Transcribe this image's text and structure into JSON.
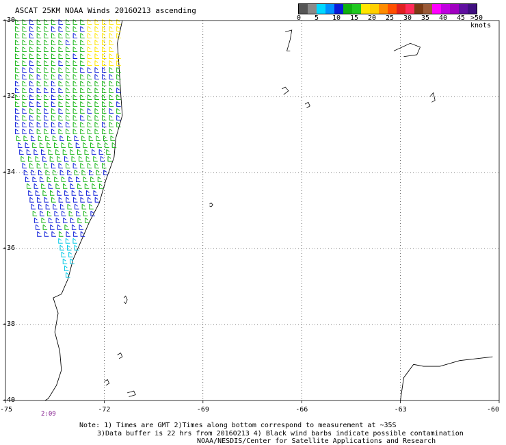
{
  "title": "ASCAT 25KM NOAA Winds 20160213 ascending",
  "colorbar": {
    "colors": [
      "#555555",
      "#8a8a8a",
      "#00d8ff",
      "#0090ff",
      "#0a1ad8",
      "#10b010",
      "#20c820",
      "#ffe600",
      "#ffd000",
      "#ff8c00",
      "#ff5000",
      "#e02020",
      "#ff2a5a",
      "#7a3a14",
      "#9a5a38",
      "#ff00ff",
      "#c000e0",
      "#a000c0",
      "#6010a0",
      "#401080"
    ],
    "labels": [
      "0",
      "5",
      "10",
      "15",
      "20",
      "25",
      "30",
      "35",
      "40",
      "45"
    ],
    "unit_label": ">50 knots"
  },
  "map": {
    "lat_ticks": [
      "-30",
      "-32",
      "-34",
      "-36",
      "-38",
      "-40"
    ],
    "lon_ticks": [
      "-75",
      "-72",
      "-69",
      "-66",
      "-63",
      "-60"
    ],
    "lon_range": [
      -75,
      -60
    ],
    "lat_range": [
      -40,
      -30
    ],
    "barb_colors": {
      "calm": "#00c8e6",
      "light": "#0a1ad8",
      "moderate": "#16b416",
      "fresh": "#ffe600"
    }
  },
  "time_label": "2:09",
  "notes": [
    "Note: 1) Times are GMT 2)Times along bottom correspond to measurement at ~35S",
    "3)Data buffer is 22 hrs from 20160213 4) Black wind barbs indicate possible contamination",
    "NOAA/NESDIS/Center for Satellite Applications and Research"
  ]
}
